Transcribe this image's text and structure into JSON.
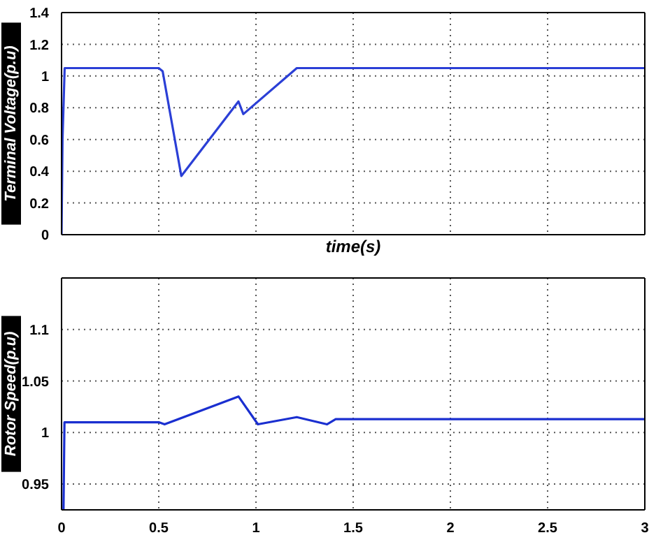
{
  "chart_data": [
    {
      "type": "line",
      "xlabel": "time(s)",
      "ylabel": "Terminal Voltage(p.u)",
      "xlim": [
        0,
        3
      ],
      "xticks": [
        0,
        0.5,
        1,
        1.5,
        2,
        2.5,
        3
      ],
      "ylim": [
        0,
        1.4
      ],
      "yticks": [
        0,
        0.2,
        0.4,
        0.6,
        0.8,
        1,
        1.2,
        1.4
      ],
      "tick_labels": "y",
      "grid": true,
      "marker": "none",
      "line_style": "solid",
      "series": [
        {
          "color": "#2b3fd6",
          "x": [
            0,
            0.005,
            0.016,
            0.5,
            0.52,
            0.616,
            0.91,
            0.935,
            1.21,
            3
          ],
          "values": [
            0,
            0.6,
            1.05,
            1.05,
            1.03,
            0.37,
            0.84,
            0.76,
            1.05,
            1.05
          ]
        }
      ]
    },
    {
      "type": "line",
      "ylabel": "Rotor Speed(p.u)",
      "xlim": [
        0,
        3
      ],
      "xticks": [
        0,
        0.5,
        1,
        1.5,
        2,
        2.5,
        3
      ],
      "ylim": [
        0.925,
        1.15
      ],
      "yticks": [
        0.95,
        1,
        1.05,
        1.1
      ],
      "grid": true,
      "marker": "none",
      "line_style": "solid",
      "series": [
        {
          "color": "#1a2fd0",
          "x": [
            0.01,
            0.015,
            0.5,
            0.53,
            0.91,
            1.01,
            1.21,
            1.365,
            1.41,
            3
          ],
          "values": [
            0.925,
            1.01,
            1.01,
            1.008,
            1.035,
            1.008,
            1.015,
            1.008,
            1.013,
            1.013
          ]
        }
      ]
    }
  ]
}
